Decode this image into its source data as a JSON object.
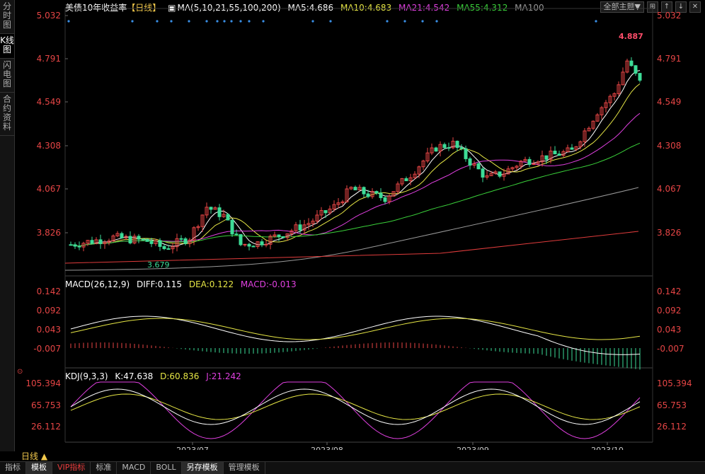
{
  "left_tabs": [
    {
      "label": "分时图"
    },
    {
      "label": "K线图"
    },
    {
      "label": "闪电图"
    },
    {
      "label": "合约资料"
    }
  ],
  "main_header": {
    "title": "美债10年收益率",
    "period_tag": "【日线】",
    "ma_label": "MA(5,10,21,55,100,200)",
    "ma5": "MA5:4.686",
    "ma10": "MA10:4.683",
    "ma21": "MA21:4.542",
    "ma55": "MA55:4.312",
    "ma100": "MA100"
  },
  "theme_button": "全部主题▼",
  "price_axis": [
    "5.032",
    "4.791",
    "4.549",
    "4.308",
    "4.067",
    "3.826"
  ],
  "macd_header": {
    "label": "MACD(26,12,9)",
    "diff": "DIFF:0.115",
    "dea": "DEA:0.122",
    "macd": "MACD:-0.013"
  },
  "macd_axis": [
    "0.142",
    "0.092",
    "0.043",
    "-0.007"
  ],
  "kdj_header": {
    "label": "KDJ(9,3,3)",
    "k": "K:47.638",
    "d": "D:60.836",
    "j": "J:21.242"
  },
  "kdj_axis": [
    "105.394",
    "65.753",
    "26.112"
  ],
  "annotations": {
    "high": "4.887",
    "low": "3.679"
  },
  "date_labels": [
    "2023/07",
    "2023/08",
    "2023/09",
    "2023/10"
  ],
  "period_label": "日线 ▲",
  "bottom_tabs": [
    "指标",
    "模板",
    "VIP指标",
    "标准",
    "MACD",
    "BOLL",
    "另存模板",
    "管理模板"
  ],
  "colors": {
    "up": "#e64545",
    "down": "#3ddc97",
    "ma5": "#ffffff",
    "ma10": "#e6e645",
    "ma21": "#e040e0",
    "ma55": "#3ad03a",
    "ma100": "#999999",
    "ma200": "#e03c3c"
  }
}
